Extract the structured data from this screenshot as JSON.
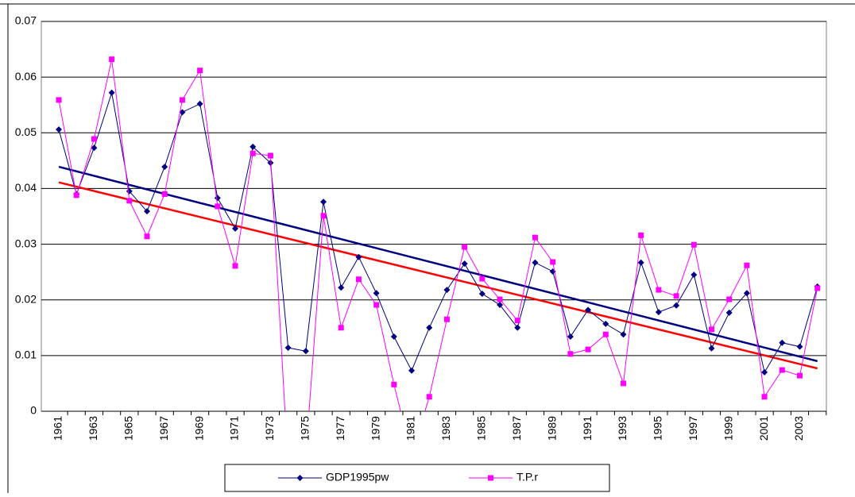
{
  "chart_data": {
    "type": "line",
    "categories": [
      "1961",
      null,
      "1963",
      null,
      "1965",
      null,
      "1967",
      null,
      "1969",
      null,
      "1971",
      null,
      "1973",
      null,
      "1975",
      null,
      "1977",
      null,
      "1979",
      null,
      "1981",
      null,
      "1983",
      null,
      "1985",
      null,
      "1987",
      null,
      "1989",
      null,
      "1991",
      null,
      "1993",
      null,
      "1995",
      null,
      "1997",
      null,
      "1999",
      null,
      "2001",
      null,
      "2003",
      null
    ],
    "series": [
      {
        "name": "GDP1995pw",
        "color": "#000080",
        "marker": "diamond",
        "values": [
          0.0506,
          0.039,
          0.0473,
          0.0572,
          0.0395,
          0.0359,
          0.0439,
          0.0537,
          0.0552,
          0.0383,
          0.0328,
          0.0475,
          0.0446,
          0.0114,
          0.0108,
          0.0376,
          0.0222,
          0.0277,
          0.0212,
          0.0134,
          0.0073,
          0.015,
          0.0218,
          0.0265,
          0.0211,
          0.0191,
          0.015,
          0.0267,
          0.0251,
          0.0134,
          0.0182,
          0.0157,
          0.0138,
          0.0267,
          0.0178,
          0.019,
          0.0245,
          0.0113,
          0.0177,
          0.0212,
          0.007,
          0.0123,
          0.0116,
          0.0224
        ]
      },
      {
        "name": "T.P.r",
        "color": "#ff00ff",
        "marker": "square",
        "values": [
          0.0559,
          0.0388,
          0.0489,
          0.0632,
          0.0378,
          0.0314,
          0.039,
          0.0559,
          0.0612,
          0.0368,
          0.0261,
          0.0463,
          0.0459,
          -0.01,
          -0.008,
          0.0351,
          0.015,
          0.0237,
          0.0191,
          0.0048,
          -0.008,
          0.0026,
          0.0165,
          0.0295,
          0.0238,
          0.0201,
          0.0163,
          0.0312,
          0.0268,
          0.0103,
          0.0111,
          0.0138,
          0.005,
          0.0316,
          0.0218,
          0.0207,
          0.0299,
          0.0147,
          0.0201,
          0.0262,
          0.0026,
          0.0074,
          0.0064,
          0.0221
        ]
      }
    ],
    "trendlines": [
      {
        "color": "#000080",
        "values": [
          0.0439,
          0.009
        ]
      },
      {
        "color": "#ff0000",
        "values": [
          0.0411,
          0.0077
        ]
      }
    ],
    "ylim": [
      0,
      0.07
    ],
    "yticks": [
      0,
      0.01,
      0.02,
      0.03,
      0.04,
      0.05,
      0.06,
      0.07
    ],
    "grid": true,
    "legend": "bottom"
  }
}
